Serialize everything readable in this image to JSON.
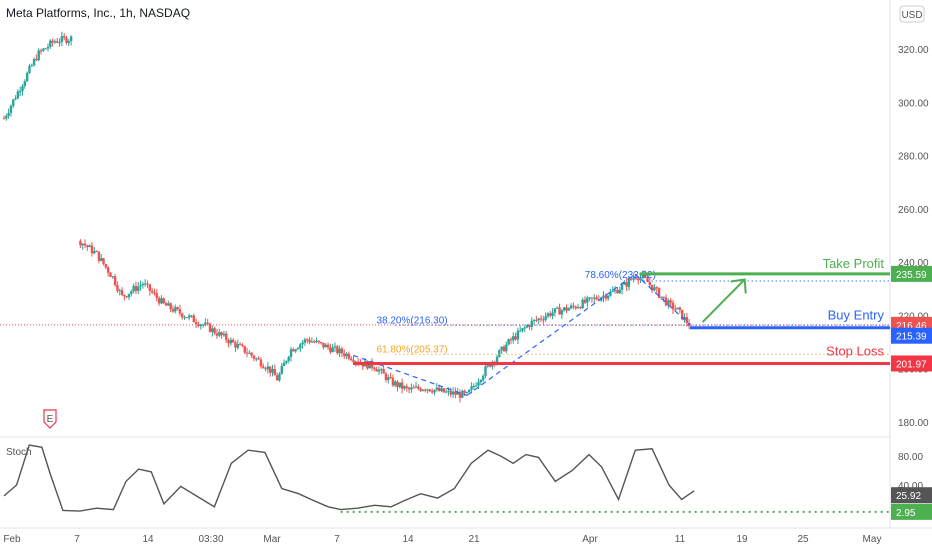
{
  "header": {
    "title": "Meta Platforms, Inc., 1h, NASDAQ",
    "currency": "USD"
  },
  "colors": {
    "up": "#26a69a",
    "down": "#ef5350",
    "take_profit": "#4caf50",
    "buy_entry": "#2962ff",
    "stop_loss": "#f23645",
    "fib_blue": "#2962ff",
    "fib_orange": "#f5a623",
    "stoch": "#555555",
    "stoch_level": "#4caf50"
  },
  "chart_data": [
    {
      "type": "candlestick",
      "title": "Meta Platforms, Inc., 1h, NASDAQ",
      "ylim": [
        180,
        340
      ],
      "y_ticks": [
        180,
        200,
        220,
        240,
        260,
        280,
        300,
        320
      ],
      "y_tick_labels": [
        "180.00",
        "200.00",
        "220.00",
        "240.00",
        "260.00",
        "280.00",
        "300.00",
        "320.00"
      ],
      "x_tick_labels": [
        "Feb",
        "7",
        "14",
        "03:30",
        "Mar",
        "7",
        "14",
        "21",
        "Apr",
        "11",
        "19",
        "25",
        "May"
      ],
      "price_path": [
        [
          0,
          294
        ],
        [
          4,
          306
        ],
        [
          8,
          318
        ],
        [
          12,
          323
        ],
        [
          16,
          324
        ],
        [
          18,
          248
        ],
        [
          22,
          243
        ],
        [
          26,
          234
        ],
        [
          28,
          227
        ],
        [
          33,
          232
        ],
        [
          38,
          224
        ],
        [
          43,
          220
        ],
        [
          48,
          216
        ],
        [
          53,
          211
        ],
        [
          58,
          206
        ],
        [
          63,
          200
        ],
        [
          65,
          196
        ],
        [
          68,
          207
        ],
        [
          72,
          211
        ],
        [
          77,
          208
        ],
        [
          82,
          205
        ],
        [
          85,
          202
        ],
        [
          88,
          201
        ],
        [
          92,
          195
        ],
        [
          96,
          192
        ],
        [
          100,
          193
        ],
        [
          105,
          191
        ],
        [
          110,
          190
        ],
        [
          115,
          201
        ],
        [
          120,
          210
        ],
        [
          125,
          217
        ],
        [
          130,
          221
        ],
        [
          135,
          223
        ],
        [
          140,
          226
        ],
        [
          145,
          229
        ],
        [
          148,
          232
        ],
        [
          150,
          235
        ],
        [
          152,
          234
        ],
        [
          155,
          229
        ],
        [
          158,
          224
        ],
        [
          160,
          222
        ],
        [
          162,
          218
        ],
        [
          163,
          216.5
        ]
      ],
      "levels": {
        "take_profit": 235.59,
        "buy_entry": 215.39,
        "stop_loss": 201.97,
        "last_price": 216.46
      },
      "annotations": {
        "take_profit_label": "Take Profit",
        "buy_entry_label": "Buy Entry",
        "stop_loss_label": "Stop Loss",
        "fib_786": "78.60%(232.92)",
        "fib_382": "38.20%(216.30)",
        "fib_618": "61.80%(205.37)"
      },
      "price_tags": [
        "235.59",
        "216.46",
        "215.39",
        "201.97"
      ]
    },
    {
      "type": "line",
      "title": "Stoch",
      "ylim": [
        0,
        100
      ],
      "y_ticks": [
        40,
        80
      ],
      "y_tick_labels": [
        "40.00",
        "80.00"
      ],
      "x": [
        0,
        3,
        6,
        9,
        11,
        14,
        18,
        22,
        26,
        29,
        32,
        35,
        38,
        42,
        46,
        50,
        54,
        58,
        62,
        66,
        70,
        73,
        77,
        80,
        84,
        88,
        92,
        95,
        99,
        103,
        107,
        111,
        115,
        118,
        121,
        124,
        127,
        131,
        135,
        139,
        142,
        146,
        150,
        154,
        158,
        161,
        164
      ],
      "values": [
        25,
        40,
        95,
        92,
        55,
        5,
        4,
        8,
        6,
        45,
        62,
        58,
        14,
        38,
        24,
        10,
        70,
        88,
        85,
        35,
        28,
        20,
        10,
        6,
        8,
        12,
        10,
        18,
        28,
        22,
        35,
        70,
        88,
        80,
        70,
        82,
        78,
        45,
        60,
        82,
        65,
        20,
        88,
        90,
        40,
        20,
        32
      ],
      "level": 2.95,
      "tags": [
        "25.92",
        "2.95"
      ]
    }
  ]
}
